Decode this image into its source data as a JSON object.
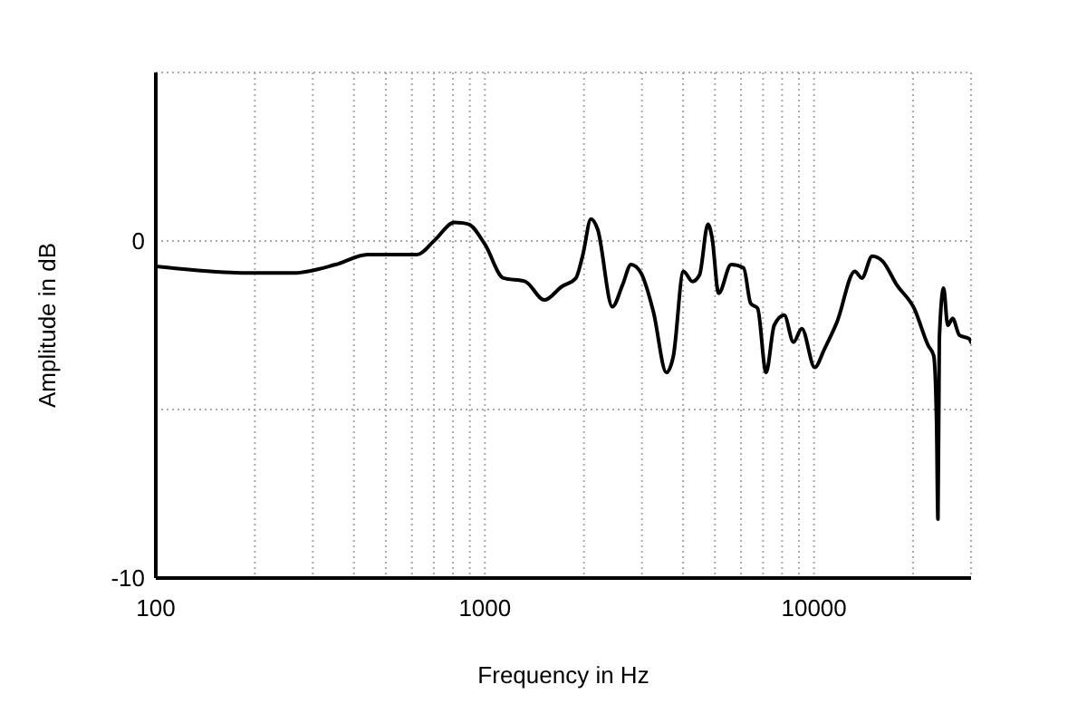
{
  "chart_data": {
    "type": "line",
    "xlabel": "Frequency in Hz",
    "ylabel": "Amplitude in dB",
    "log": "x",
    "grid": true,
    "marker": "none",
    "line_style": "solid",
    "xlim": [
      100,
      30000
    ],
    "ylim": [
      -10,
      5
    ],
    "xticks": [
      100,
      {
        "value": 200,
        "label": null
      },
      {
        "value": 300,
        "label": null
      },
      {
        "value": 400,
        "label": null
      },
      {
        "value": 500,
        "label": null
      },
      {
        "value": 600,
        "label": null
      },
      {
        "value": 700,
        "label": null
      },
      {
        "value": 800,
        "label": null
      },
      {
        "value": 900,
        "label": null
      },
      1000,
      {
        "value": 2000,
        "label": null
      },
      {
        "value": 3000,
        "label": null
      },
      {
        "value": 4000,
        "label": null
      },
      {
        "value": 5000,
        "label": null
      },
      {
        "value": 6000,
        "label": null
      },
      {
        "value": 7000,
        "label": null
      },
      {
        "value": 8000,
        "label": null
      },
      {
        "value": 9000,
        "label": null
      },
      10000,
      {
        "value": 20000,
        "label": null
      }
    ],
    "yticks": [
      -10,
      {
        "value": -5,
        "label": null
      },
      0
    ],
    "series": [
      {
        "color": "#000000",
        "x": [
          100,
          195,
          262,
          352,
          440,
          623,
          700,
          808,
          890,
          1000,
          1138,
          1325,
          1516,
          1713,
          1890,
          1985,
          2100,
          2200,
          2440,
          2620,
          2780,
          2980,
          3250,
          3560,
          3740,
          4010,
          4270,
          4490,
          4760,
          4900,
          5130,
          5600,
          6110,
          6420,
          6740,
          7150,
          7570,
          8120,
          8660,
          9180,
          10050,
          10760,
          11750,
          13300,
          13970,
          15020,
          16160,
          17830,
          20150,
          22230,
          23100,
          23560,
          23800,
          24030,
          24760,
          25480,
          26360,
          27680,
          29600,
          30000
        ],
        "values": [
          -0.75,
          -0.95,
          -0.95,
          -0.7,
          -0.4,
          -0.4,
          0,
          0.55,
          0.5,
          -0.1,
          -1.1,
          -1.2,
          -1.75,
          -1.35,
          -1.1,
          -0.4,
          0.65,
          0.35,
          -1.95,
          -1.3,
          -0.7,
          -0.95,
          -2.1,
          -3.9,
          -3.4,
          -0.9,
          -1.2,
          -1,
          0.5,
          0.1,
          -1.55,
          -0.7,
          -0.8,
          -1.85,
          -2,
          -3.9,
          -2.5,
          -2.2,
          -3,
          -2.6,
          -3.75,
          -3.2,
          -2.4,
          -0.9,
          -1.1,
          -0.45,
          -0.6,
          -1.3,
          -2,
          -3.1,
          -3.4,
          -5.3,
          -8.25,
          -2.9,
          -1.4,
          -2.5,
          -2.3,
          -2.8,
          -2.9,
          -3
        ]
      }
    ]
  }
}
